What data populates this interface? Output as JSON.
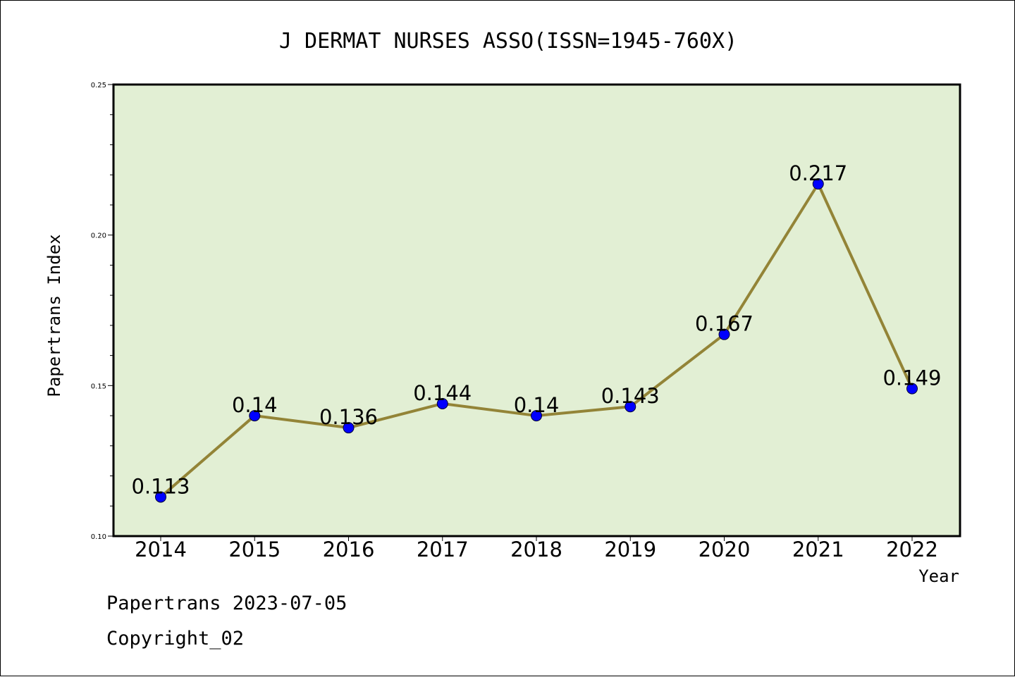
{
  "chart_data": {
    "type": "line",
    "title": "J DERMAT NURSES ASSO(ISSN=1945-760X)",
    "xlabel": "Year",
    "ylabel": "Papertrans Index",
    "categories": [
      "2014",
      "2015",
      "2016",
      "2017",
      "2018",
      "2019",
      "2020",
      "2021",
      "2022"
    ],
    "values": [
      0.113,
      0.14,
      0.136,
      0.144,
      0.14,
      0.143,
      0.167,
      0.217,
      0.149
    ],
    "value_labels": [
      "0.113",
      "0.14",
      "0.136",
      "0.144",
      "0.14",
      "0.143",
      "0.167",
      "0.217",
      "0.149"
    ],
    "ylim": [
      0.1,
      0.25
    ],
    "y_ticks": [
      "0.10",
      "0.15",
      "0.20",
      "0.25"
    ],
    "grid": false,
    "colors": {
      "plot_background": "#e2efd4",
      "line": "#938437",
      "marker": "#0000ff"
    }
  },
  "footer": {
    "source": "Papertrans 2023-07-05",
    "copyright": "Copyright_02"
  }
}
